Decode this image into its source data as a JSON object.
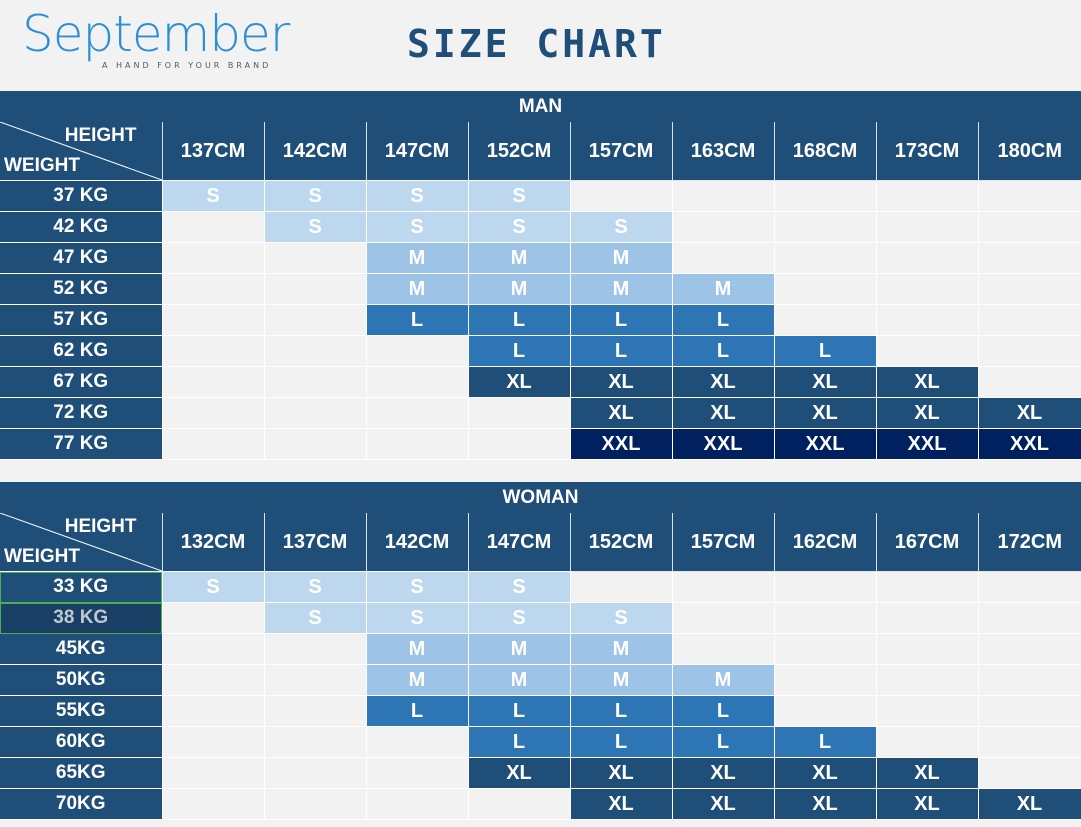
{
  "brand": {
    "name": "September",
    "tagline": "A HAND FOR YOUR BRAND"
  },
  "title": "SIZE CHART",
  "corner": {
    "height_label": "HEIGHT",
    "weight_label": "WEIGHT"
  },
  "colors": {
    "header_bg": "#1f4e79",
    "S": "#bdd7ee",
    "M": "#9dc3e6",
    "L": "#2e75b6",
    "XL": "#1f4e79",
    "XXL": "#002060"
  },
  "man": {
    "title": "MAN",
    "heights": [
      "137CM",
      "142CM",
      "147CM",
      "152CM",
      "157CM",
      "163CM",
      "168CM",
      "173CM",
      "180CM"
    ],
    "rows": [
      {
        "weight": "37 KG",
        "sizes": [
          "S",
          "S",
          "S",
          "S",
          "",
          "",
          "",
          "",
          ""
        ]
      },
      {
        "weight": "42 KG",
        "sizes": [
          "",
          "S",
          "S",
          "S",
          "S",
          "",
          "",
          "",
          ""
        ]
      },
      {
        "weight": "47 KG",
        "sizes": [
          "",
          "",
          "M",
          "M",
          "M",
          "",
          "",
          "",
          ""
        ]
      },
      {
        "weight": "52 KG",
        "sizes": [
          "",
          "",
          "M",
          "M",
          "M",
          "M",
          "",
          "",
          ""
        ]
      },
      {
        "weight": "57 KG",
        "sizes": [
          "",
          "",
          "L",
          "L",
          "L",
          "L",
          "",
          "",
          ""
        ]
      },
      {
        "weight": "62 KG",
        "sizes": [
          "",
          "",
          "",
          "L",
          "L",
          "L",
          "L",
          "",
          ""
        ]
      },
      {
        "weight": "67 KG",
        "sizes": [
          "",
          "",
          "",
          "XL",
          "XL",
          "XL",
          "XL",
          "XL",
          ""
        ]
      },
      {
        "weight": "72 KG",
        "sizes": [
          "",
          "",
          "",
          "",
          "XL",
          "XL",
          "XL",
          "XL",
          "XL"
        ]
      },
      {
        "weight": "77 KG",
        "sizes": [
          "",
          "",
          "",
          "",
          "XXL",
          "XXL",
          "XXL",
          "XXL",
          "XXL"
        ]
      }
    ]
  },
  "woman": {
    "title": "WOMAN",
    "heights": [
      "132CM",
      "137CM",
      "142CM",
      "147CM",
      "152CM",
      "157CM",
      "162CM",
      "167CM",
      "172CM"
    ],
    "rows": [
      {
        "weight": "33 KG",
        "sizes": [
          "S",
          "S",
          "S",
          "S",
          "",
          "",
          "",
          "",
          ""
        ]
      },
      {
        "weight": "38 KG",
        "sizes": [
          "",
          "S",
          "S",
          "S",
          "S",
          "",
          "",
          "",
          ""
        ]
      },
      {
        "weight": "45KG",
        "sizes": [
          "",
          "",
          "M",
          "M",
          "M",
          "",
          "",
          "",
          ""
        ]
      },
      {
        "weight": "50KG",
        "sizes": [
          "",
          "",
          "M",
          "M",
          "M",
          "M",
          "",
          "",
          ""
        ]
      },
      {
        "weight": "55KG",
        "sizes": [
          "",
          "",
          "L",
          "L",
          "L",
          "L",
          "",
          "",
          ""
        ]
      },
      {
        "weight": "60KG",
        "sizes": [
          "",
          "",
          "",
          "L",
          "L",
          "L",
          "L",
          "",
          ""
        ]
      },
      {
        "weight": "65KG",
        "sizes": [
          "",
          "",
          "",
          "XL",
          "XL",
          "XL",
          "XL",
          "XL",
          ""
        ]
      },
      {
        "weight": "70KG",
        "sizes": [
          "",
          "",
          "",
          "",
          "XL",
          "XL",
          "XL",
          "XL",
          "XL"
        ]
      }
    ]
  }
}
